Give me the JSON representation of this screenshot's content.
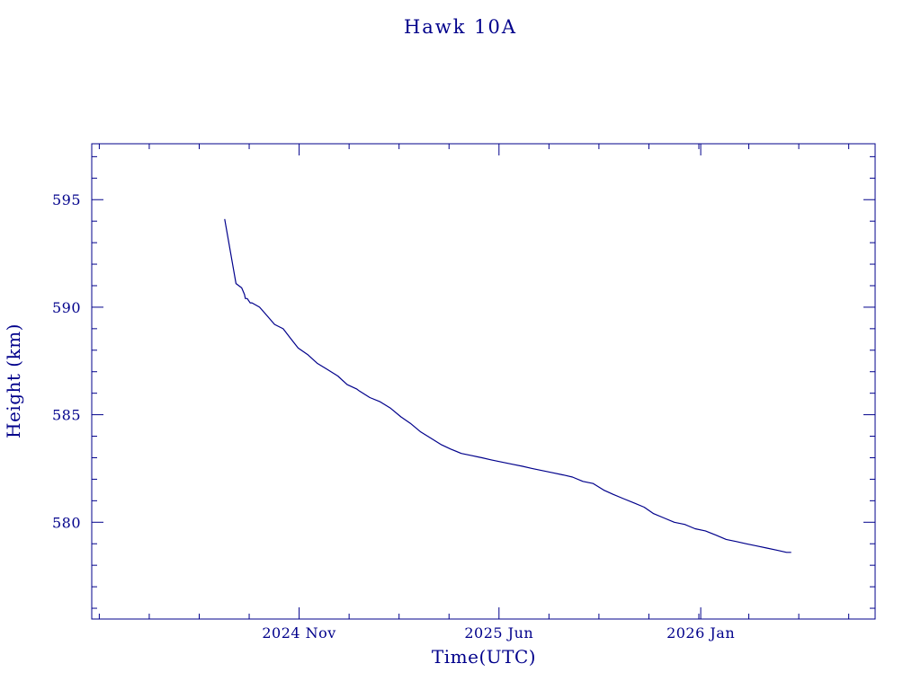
{
  "colors": {
    "ink": "#00008b",
    "background": "#ffffff"
  },
  "chart_data": {
    "type": "line",
    "title": "Hawk 10A",
    "xlabel": "Time(UTC)",
    "ylabel": "Height (km)",
    "x_ticks": [
      {
        "date": "2024-11-01",
        "label": "2024 Nov"
      },
      {
        "date": "2025-06-01",
        "label": "2025 Jun"
      },
      {
        "date": "2026-01-01",
        "label": "2026 Jan"
      }
    ],
    "y_ticks": [
      580,
      585,
      590,
      595
    ],
    "xlim": [
      "2024-03-26",
      "2026-07-05"
    ],
    "ylim": [
      575.5,
      597.6
    ],
    "grid": false,
    "series": [
      {
        "x": [
          "2024-08-14",
          "2024-08-22",
          "2024-08-26",
          "2024-09-01",
          "2024-09-04",
          "2024-09-05",
          "2024-09-07",
          "2024-09-10",
          "2024-09-12",
          "2024-09-20",
          "2024-09-28",
          "2024-10-06",
          "2024-10-15",
          "2024-10-22",
          "2024-10-31",
          "2024-11-10",
          "2024-11-20",
          "2024-12-01",
          "2024-12-12",
          "2024-12-22",
          "2025-01-01",
          "2025-01-04",
          "2025-01-15",
          "2025-01-26",
          "2025-02-06",
          "2025-02-17",
          "2025-02-27",
          "2025-03-10",
          "2025-03-21",
          "2025-04-01",
          "2025-04-11",
          "2025-04-22",
          "2025-05-03",
          "2025-05-14",
          "2025-05-24",
          "2025-06-04",
          "2025-06-15",
          "2025-06-26",
          "2025-07-06",
          "2025-07-17",
          "2025-07-28",
          "2025-08-08",
          "2025-08-18",
          "2025-08-29",
          "2025-09-09",
          "2025-09-20",
          "2025-09-30",
          "2025-10-11",
          "2025-10-22",
          "2025-11-02",
          "2025-11-12",
          "2025-11-23",
          "2025-12-04",
          "2025-12-15",
          "2025-12-26",
          "2026-01-06",
          "2026-01-17",
          "2026-01-28",
          "2026-02-08",
          "2026-02-18",
          "2026-03-01",
          "2026-03-12",
          "2026-03-23",
          "2026-04-02",
          "2026-04-07"
        ],
        "y": [
          594.1,
          592.1,
          591.1,
          590.9,
          590.6,
          590.4,
          590.4,
          590.2,
          590.2,
          590.0,
          589.6,
          589.2,
          589.0,
          588.6,
          588.1,
          587.8,
          587.4,
          587.1,
          586.8,
          586.4,
          586.2,
          586.1,
          585.8,
          585.6,
          585.3,
          584.9,
          584.6,
          584.2,
          583.9,
          583.6,
          583.4,
          583.2,
          583.1,
          583.0,
          582.9,
          582.8,
          582.7,
          582.6,
          582.5,
          582.4,
          582.3,
          582.2,
          582.1,
          581.9,
          581.8,
          581.5,
          581.3,
          581.1,
          580.9,
          580.7,
          580.4,
          580.2,
          580.0,
          579.9,
          579.7,
          579.6,
          579.4,
          579.2,
          579.1,
          579.0,
          578.9,
          578.8,
          578.7,
          578.6,
          578.6
        ]
      }
    ]
  }
}
